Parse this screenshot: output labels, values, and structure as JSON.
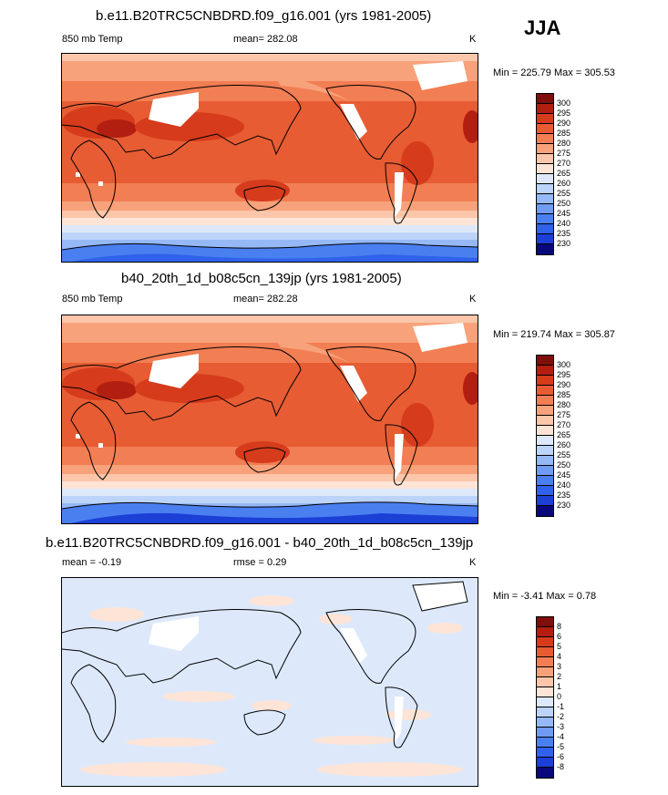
{
  "season": "JJA",
  "colors": {
    "temp_scale": [
      "#08087a",
      "#1c3fd6",
      "#2f61ea",
      "#4a7ff0",
      "#6f9bf3",
      "#96b8f6",
      "#bcd3fa",
      "#dde9fb",
      "#fde4d6",
      "#fbc6a9",
      "#f8a27b",
      "#f27e53",
      "#e75c33",
      "#d63b1c",
      "#b21e10",
      "#7e0f0b"
    ],
    "diff_scale": [
      "#08087a",
      "#1c3fd6",
      "#2f61ea",
      "#4a7ff0",
      "#6f9bf3",
      "#96b8f6",
      "#bcd3fa",
      "#dde9fb",
      "#fde4d6",
      "#fbc6a9",
      "#f8a27b",
      "#f27e53",
      "#e75c33",
      "#d63b1c",
      "#b21e10",
      "#7e0f0b"
    ]
  },
  "panels": [
    {
      "title": "b.e11.B20TRC5CNBDRD.f09_g16.001 (yrs 1981-2005)",
      "left_label": "850 mb Temp",
      "center_label": "mean= 282.08",
      "units": "K",
      "minmax": "Min = 225.79 Max = 305.53",
      "levels": [
        "300",
        "295",
        "290",
        "285",
        "280",
        "275",
        "270",
        "265",
        "260",
        "255",
        "250",
        "245",
        "240",
        "235",
        "230"
      ]
    },
    {
      "title": "b40_20th_1d_b08c5cn_139jp (yrs 1981-2005)",
      "left_label": "850 mb Temp",
      "center_label": "mean= 282.28",
      "units": "K",
      "minmax": "Min = 219.74 Max = 305.87",
      "levels": [
        "300",
        "295",
        "290",
        "285",
        "280",
        "275",
        "270",
        "265",
        "260",
        "255",
        "250",
        "245",
        "240",
        "235",
        "230"
      ]
    },
    {
      "title": "b.e11.B20TRC5CNBDRD.f09_g16.001 - b40_20th_1d_b08c5cn_139jp",
      "left_label": "mean =  -0.19",
      "center_label": "rmse =   0.29",
      "units": "K",
      "minmax": "Min =  -3.41 Max =   0.78",
      "levels": [
        "8",
        "6",
        "5",
        "4",
        "3",
        "2",
        "1",
        "0",
        "-1",
        "-2",
        "-3",
        "-4",
        "-5",
        "-6",
        "-8"
      ]
    }
  ]
}
